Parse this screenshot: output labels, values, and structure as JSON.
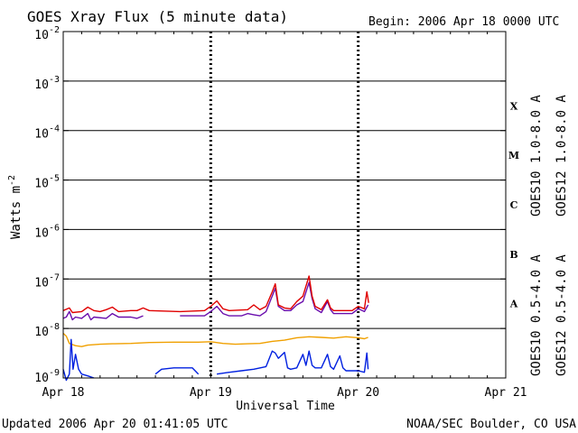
{
  "header": {
    "title": "GOES Xray Flux (5 minute data)",
    "begin": "Begin:  2006 Apr 18 0000 UTC"
  },
  "footer": {
    "updated": "Updated 2006 Apr 20 01:41:05 UTC",
    "credit": "NOAA/SEC Boulder, CO USA"
  },
  "colors": {
    "goes10_long": "#6a0dad",
    "goes12_long": "#e00000",
    "goes10_short": "#f0a000",
    "goes12_short": "#0020e0"
  },
  "chart_data": {
    "type": "line",
    "title": "GOES Xray Flux (5 minute data)",
    "xlabel": "Universal Time",
    "ylabel": "Watts m",
    "ylabel_sup": "-2",
    "yscale": "log",
    "ylim": [
      1e-09,
      0.01
    ],
    "xlim": [
      0,
      72
    ],
    "x_units": "hours since 2006 Apr 18 0000 UTC",
    "x_ticks": [
      {
        "x": 0,
        "label": "Apr 18"
      },
      {
        "x": 24,
        "label": "Apr 19"
      },
      {
        "x": 48,
        "label": "Apr 20"
      },
      {
        "x": 72,
        "label": "Apr 21"
      }
    ],
    "y_ticks": [
      {
        "exp": -2,
        "label_base": "10",
        "label_exp": "-2"
      },
      {
        "exp": -3,
        "label_base": "10",
        "label_exp": "-3"
      },
      {
        "exp": -4,
        "label_base": "10",
        "label_exp": "-4"
      },
      {
        "exp": -5,
        "label_base": "10",
        "label_exp": "-5"
      },
      {
        "exp": -6,
        "label_base": "10",
        "label_exp": "-6"
      },
      {
        "exp": -7,
        "label_base": "10",
        "label_exp": "-7"
      },
      {
        "exp": -8,
        "label_base": "10",
        "label_exp": "-8"
      },
      {
        "exp": -9,
        "label_base": "10",
        "label_exp": "-9"
      }
    ],
    "flare_classes": [
      {
        "label": "X",
        "exp": -3.5
      },
      {
        "label": "M",
        "exp": -4.5
      },
      {
        "label": "C",
        "exp": -5.5
      },
      {
        "label": "B",
        "exp": -6.5
      },
      {
        "label": "A",
        "exp": -7.5
      }
    ],
    "grid": true,
    "legend_position": "right",
    "series": [
      {
        "name": "GOES10 1.0-8.0 A",
        "color": "#6a0dad",
        "points": [
          [
            0,
            1.6e-08
          ],
          [
            0.5,
            1.7e-08
          ],
          [
            1,
            2.2e-08
          ],
          [
            1.5,
            1.5e-08
          ],
          [
            2,
            1.7e-08
          ],
          [
            3,
            1.6e-08
          ],
          [
            4,
            2e-08
          ],
          [
            4.5,
            1.5e-08
          ],
          [
            5,
            1.7e-08
          ],
          [
            7,
            1.6e-08
          ],
          [
            8,
            2e-08
          ],
          [
            9,
            1.7e-08
          ],
          [
            11,
            1.7e-08
          ],
          [
            12,
            1.6e-08
          ],
          [
            13,
            1.8e-08
          ],
          null,
          [
            19,
            1.8e-08
          ],
          [
            23,
            1.8e-08
          ],
          [
            24,
            2.2e-08
          ],
          [
            25,
            2.8e-08
          ],
          [
            26,
            2e-08
          ],
          [
            27,
            1.8e-08
          ],
          [
            29,
            1.8e-08
          ],
          [
            30,
            2e-08
          ],
          [
            31,
            1.9e-08
          ],
          [
            32,
            1.8e-08
          ],
          [
            33,
            2.2e-08
          ],
          [
            34,
            4.5e-08
          ],
          [
            34.5,
            6.5e-08
          ],
          [
            35,
            2.8e-08
          ],
          [
            36,
            2.3e-08
          ],
          [
            37,
            2.3e-08
          ],
          [
            38,
            3e-08
          ],
          [
            39,
            3.5e-08
          ],
          [
            40,
            8.5e-08
          ],
          [
            40.5,
            4e-08
          ],
          [
            41,
            2.5e-08
          ],
          [
            42,
            2.1e-08
          ],
          [
            43,
            3.5e-08
          ],
          [
            43.5,
            2.4e-08
          ],
          [
            44,
            2e-08
          ],
          [
            47,
            2e-08
          ],
          [
            48,
            2.5e-08
          ],
          [
            49,
            2.2e-08
          ],
          [
            49.6,
            3e-08
          ]
        ]
      },
      {
        "name": "GOES12 1.0-8.0 A",
        "color": "#e00000",
        "points": [
          [
            0,
            2.3e-08
          ],
          [
            1,
            2.6e-08
          ],
          [
            1.5,
            2.1e-08
          ],
          [
            3,
            2.2e-08
          ],
          [
            4,
            2.7e-08
          ],
          [
            5,
            2.3e-08
          ],
          [
            6,
            2.2e-08
          ],
          [
            7,
            2.4e-08
          ],
          [
            8,
            2.7e-08
          ],
          [
            9,
            2.2e-08
          ],
          [
            11,
            2.3e-08
          ],
          [
            12,
            2.3e-08
          ],
          [
            13,
            2.6e-08
          ],
          [
            14,
            2.3e-08
          ],
          [
            19,
            2.2e-08
          ],
          [
            23,
            2.3e-08
          ],
          [
            24,
            2.8e-08
          ],
          [
            25,
            3.6e-08
          ],
          [
            26,
            2.5e-08
          ],
          [
            27,
            2.3e-08
          ],
          [
            30,
            2.4e-08
          ],
          [
            31,
            3e-08
          ],
          [
            32,
            2.4e-08
          ],
          [
            33,
            2.8e-08
          ],
          [
            34,
            5.5e-08
          ],
          [
            34.5,
            8e-08
          ],
          [
            35,
            3e-08
          ],
          [
            36,
            2.6e-08
          ],
          [
            37,
            2.5e-08
          ],
          [
            38,
            3.5e-08
          ],
          [
            39,
            4.5e-08
          ],
          [
            40,
            1.15e-07
          ],
          [
            40.5,
            4.5e-08
          ],
          [
            41,
            2.8e-08
          ],
          [
            42,
            2.4e-08
          ],
          [
            43,
            3.8e-08
          ],
          [
            43.5,
            2.6e-08
          ],
          [
            44,
            2.3e-08
          ],
          [
            47,
            2.3e-08
          ],
          [
            48,
            2.8e-08
          ],
          [
            49,
            2.5e-08
          ],
          [
            49.4,
            5.5e-08
          ],
          [
            49.7,
            3.3e-08
          ]
        ]
      },
      {
        "name": "GOES10 0.5-4.0 A",
        "color": "#f0a000",
        "points": [
          [
            0,
            8e-09
          ],
          [
            0.5,
            7e-09
          ],
          [
            1,
            5e-09
          ],
          [
            2,
            4.5e-09
          ],
          [
            3,
            4.3e-09
          ],
          [
            4,
            4.6e-09
          ],
          [
            6,
            4.8e-09
          ],
          [
            8,
            4.9e-09
          ],
          [
            11,
            5e-09
          ],
          [
            14,
            5.2e-09
          ],
          [
            18,
            5.3e-09
          ],
          [
            22,
            5.3e-09
          ],
          [
            24,
            5.4e-09
          ],
          [
            26,
            5e-09
          ],
          [
            28,
            4.8e-09
          ],
          [
            30,
            4.9e-09
          ],
          [
            32,
            5e-09
          ],
          [
            34,
            5.5e-09
          ],
          [
            36,
            5.8e-09
          ],
          [
            38,
            6.5e-09
          ],
          [
            40,
            6.8e-09
          ],
          [
            42,
            6.6e-09
          ],
          [
            44,
            6.4e-09
          ],
          [
            46,
            6.8e-09
          ],
          [
            48,
            6.5e-09
          ],
          [
            49,
            6.2e-09
          ],
          [
            49.6,
            6.6e-09
          ]
        ]
      },
      {
        "name": "GOES12 0.5-4.0 A",
        "color": "#0020e0",
        "points": [
          [
            0,
            1.5e-09
          ],
          [
            0.5,
            9e-10
          ],
          [
            1,
            1.2e-09
          ],
          [
            1.3,
            6e-09
          ],
          [
            1.6,
            1.5e-09
          ],
          [
            2,
            3e-09
          ],
          [
            2.5,
            1.5e-09
          ],
          [
            3,
            1.2e-09
          ],
          [
            4,
            1.1e-09
          ],
          [
            5,
            1e-09
          ],
          null,
          [
            15,
            1.2e-09
          ],
          [
            16,
            1.5e-09
          ],
          [
            18,
            1.6e-09
          ],
          [
            21,
            1.6e-09
          ],
          [
            22,
            1.2e-09
          ],
          null,
          [
            25,
            1.2e-09
          ],
          [
            27,
            1.3e-09
          ],
          [
            29,
            1.4e-09
          ],
          [
            31,
            1.5e-09
          ],
          [
            33,
            1.7e-09
          ],
          [
            34,
            3.5e-09
          ],
          [
            34.5,
            3.2e-09
          ],
          [
            35,
            2.5e-09
          ],
          [
            36,
            3.3e-09
          ],
          [
            36.5,
            1.6e-09
          ],
          [
            37,
            1.5e-09
          ],
          [
            38,
            1.6e-09
          ],
          [
            39,
            3e-09
          ],
          [
            39.5,
            1.8e-09
          ],
          [
            40,
            3.5e-09
          ],
          [
            40.5,
            1.8e-09
          ],
          [
            41,
            1.6e-09
          ],
          [
            42,
            1.6e-09
          ],
          [
            43,
            3e-09
          ],
          [
            43.5,
            1.7e-09
          ],
          [
            44,
            1.5e-09
          ],
          [
            45,
            2.8e-09
          ],
          [
            45.5,
            1.6e-09
          ],
          [
            46,
            1.4e-09
          ],
          [
            48,
            1.4e-09
          ],
          [
            49,
            1.3e-09
          ],
          [
            49.4,
            3.2e-09
          ],
          [
            49.6,
            1.5e-09
          ]
        ]
      }
    ]
  }
}
